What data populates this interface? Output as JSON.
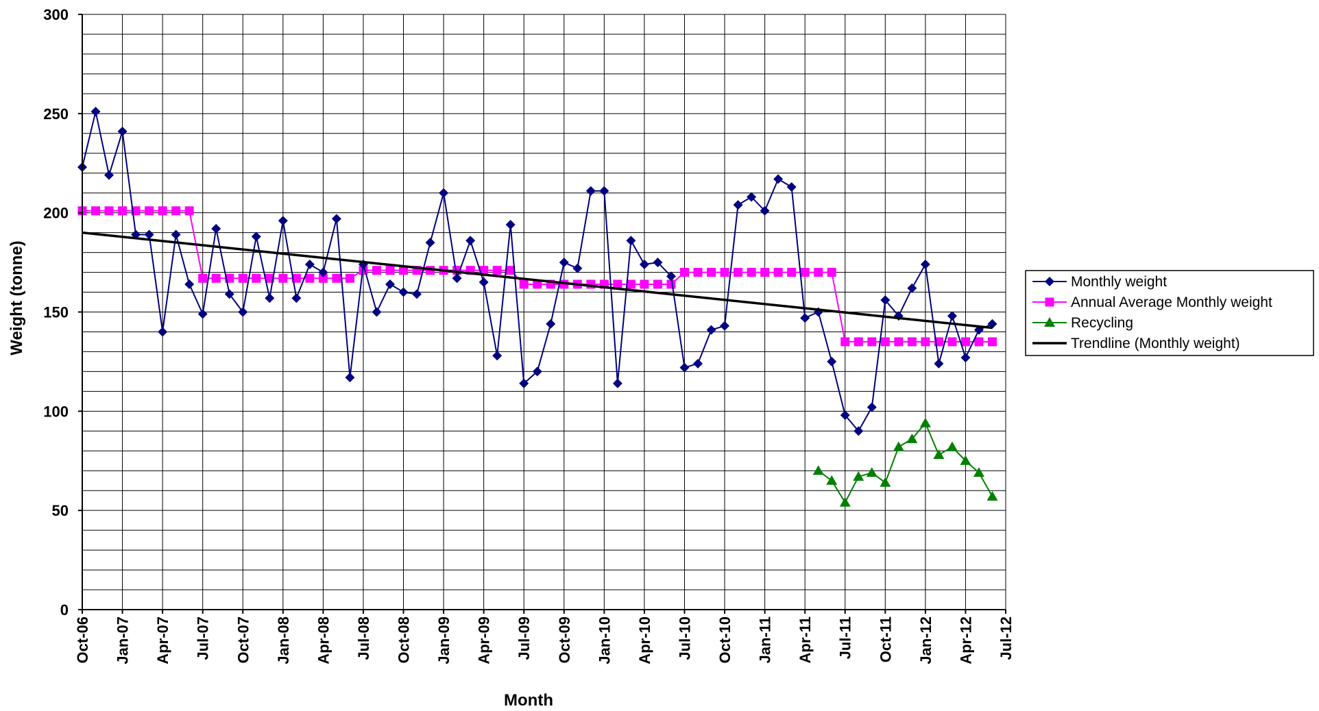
{
  "chart_data": {
    "type": "line",
    "title": "",
    "xlabel": "Month",
    "ylabel": "Weight (tonne)",
    "ylim": [
      0,
      300
    ],
    "yticks": [
      "0",
      "50",
      "100",
      "150",
      "200",
      "250",
      "300"
    ],
    "xlim": [
      "2006-10",
      "2012-07"
    ],
    "xticks": [
      "Oct-06",
      "Jan-07",
      "Apr-07",
      "Jul-07",
      "Oct-07",
      "Jan-08",
      "Apr-08",
      "Jul-08",
      "Oct-08",
      "Jan-09",
      "Apr-09",
      "Jul-09",
      "Oct-09",
      "Jan-10",
      "Apr-10",
      "Jul-10",
      "Oct-10",
      "Jan-11",
      "Apr-11",
      "Jul-11",
      "Oct-11",
      "Jan-12",
      "Apr-12",
      "Jul-12"
    ],
    "grid": true,
    "legend_position": "right",
    "series": [
      {
        "name": "Monthly weight",
        "color": "#000080",
        "marker": "diamond",
        "x": [
          "2006-10",
          "2006-11",
          "2006-12",
          "2007-01",
          "2007-02",
          "2007-03",
          "2007-04",
          "2007-05",
          "2007-06",
          "2007-07",
          "2007-08",
          "2007-09",
          "2007-10",
          "2007-11",
          "2007-12",
          "2008-01",
          "2008-02",
          "2008-03",
          "2008-04",
          "2008-05",
          "2008-06",
          "2008-07",
          "2008-08",
          "2008-09",
          "2008-10",
          "2008-11",
          "2008-12",
          "2009-01",
          "2009-02",
          "2009-03",
          "2009-04",
          "2009-05",
          "2009-06",
          "2009-07",
          "2009-08",
          "2009-09",
          "2009-10",
          "2009-11",
          "2009-12",
          "2010-01",
          "2010-02",
          "2010-03",
          "2010-04",
          "2010-05",
          "2010-06",
          "2010-07",
          "2010-08",
          "2010-09",
          "2010-10",
          "2010-11",
          "2010-12",
          "2011-01",
          "2011-02",
          "2011-03",
          "2011-04",
          "2011-05",
          "2011-06",
          "2011-07",
          "2011-08",
          "2011-09",
          "2011-10",
          "2011-11",
          "2011-12",
          "2012-01",
          "2012-02",
          "2012-03",
          "2012-04",
          "2012-05",
          "2012-06"
        ],
        "values": [
          223,
          251,
          219,
          241,
          189,
          189,
          140,
          189,
          164,
          149,
          192,
          159,
          150,
          188,
          157,
          196,
          157,
          174,
          170,
          197,
          117,
          174,
          150,
          164,
          160,
          159,
          185,
          210,
          167,
          186,
          165,
          128,
          194,
          114,
          120,
          144,
          175,
          172,
          211,
          211,
          114,
          186,
          174,
          175,
          168,
          122,
          124,
          141,
          143,
          204,
          208,
          201,
          217,
          213,
          147,
          150,
          125,
          98,
          90,
          102,
          156,
          148,
          162,
          174,
          124,
          148,
          127,
          141,
          144
        ]
      },
      {
        "name": "Annual Average Monthly weight",
        "color": "#ff00ff",
        "marker": "square",
        "x": [
          "2006-10",
          "2006-11",
          "2006-12",
          "2007-01",
          "2007-02",
          "2007-03",
          "2007-04",
          "2007-05",
          "2007-06",
          "2007-07",
          "2007-08",
          "2007-09",
          "2007-10",
          "2007-11",
          "2007-12",
          "2008-01",
          "2008-02",
          "2008-03",
          "2008-04",
          "2008-05",
          "2008-06",
          "2008-07",
          "2008-08",
          "2008-09",
          "2008-10",
          "2008-11",
          "2008-12",
          "2009-01",
          "2009-02",
          "2009-03",
          "2009-04",
          "2009-05",
          "2009-06",
          "2009-07",
          "2009-08",
          "2009-09",
          "2009-10",
          "2009-11",
          "2009-12",
          "2010-01",
          "2010-02",
          "2010-03",
          "2010-04",
          "2010-05",
          "2010-06",
          "2010-07",
          "2010-08",
          "2010-09",
          "2010-10",
          "2010-11",
          "2010-12",
          "2011-01",
          "2011-02",
          "2011-03",
          "2011-04",
          "2011-05",
          "2011-06",
          "2011-07",
          "2011-08",
          "2011-09",
          "2011-10",
          "2011-11",
          "2011-12",
          "2012-01",
          "2012-02",
          "2012-03",
          "2012-04",
          "2012-05",
          "2012-06"
        ],
        "values": [
          201,
          201,
          201,
          201,
          201,
          201,
          201,
          201,
          201,
          167,
          167,
          167,
          167,
          167,
          167,
          167,
          167,
          167,
          167,
          167,
          167,
          171,
          171,
          171,
          171,
          171,
          171,
          171,
          171,
          171,
          171,
          171,
          171,
          164,
          164,
          164,
          164,
          164,
          164,
          164,
          164,
          164,
          164,
          164,
          164,
          170,
          170,
          170,
          170,
          170,
          170,
          170,
          170,
          170,
          170,
          170,
          170,
          135,
          135,
          135,
          135,
          135,
          135,
          135,
          135,
          135,
          135,
          135,
          135
        ]
      },
      {
        "name": "Recycling",
        "color": "#008000",
        "marker": "triangle",
        "x": [
          "2011-05",
          "2011-06",
          "2011-07",
          "2011-08",
          "2011-09",
          "2011-10",
          "2011-11",
          "2011-12",
          "2012-01",
          "2012-02",
          "2012-03",
          "2012-04",
          "2012-05",
          "2012-06"
        ],
        "values": [
          70,
          65,
          54,
          67,
          69,
          64,
          82,
          86,
          94,
          78,
          82,
          75,
          69,
          57
        ]
      },
      {
        "name": "Trendline (Monthly weight)",
        "color": "#000000",
        "marker": "none",
        "x": [
          "2006-10",
          "2012-06"
        ],
        "values": [
          190,
          142
        ]
      }
    ]
  }
}
